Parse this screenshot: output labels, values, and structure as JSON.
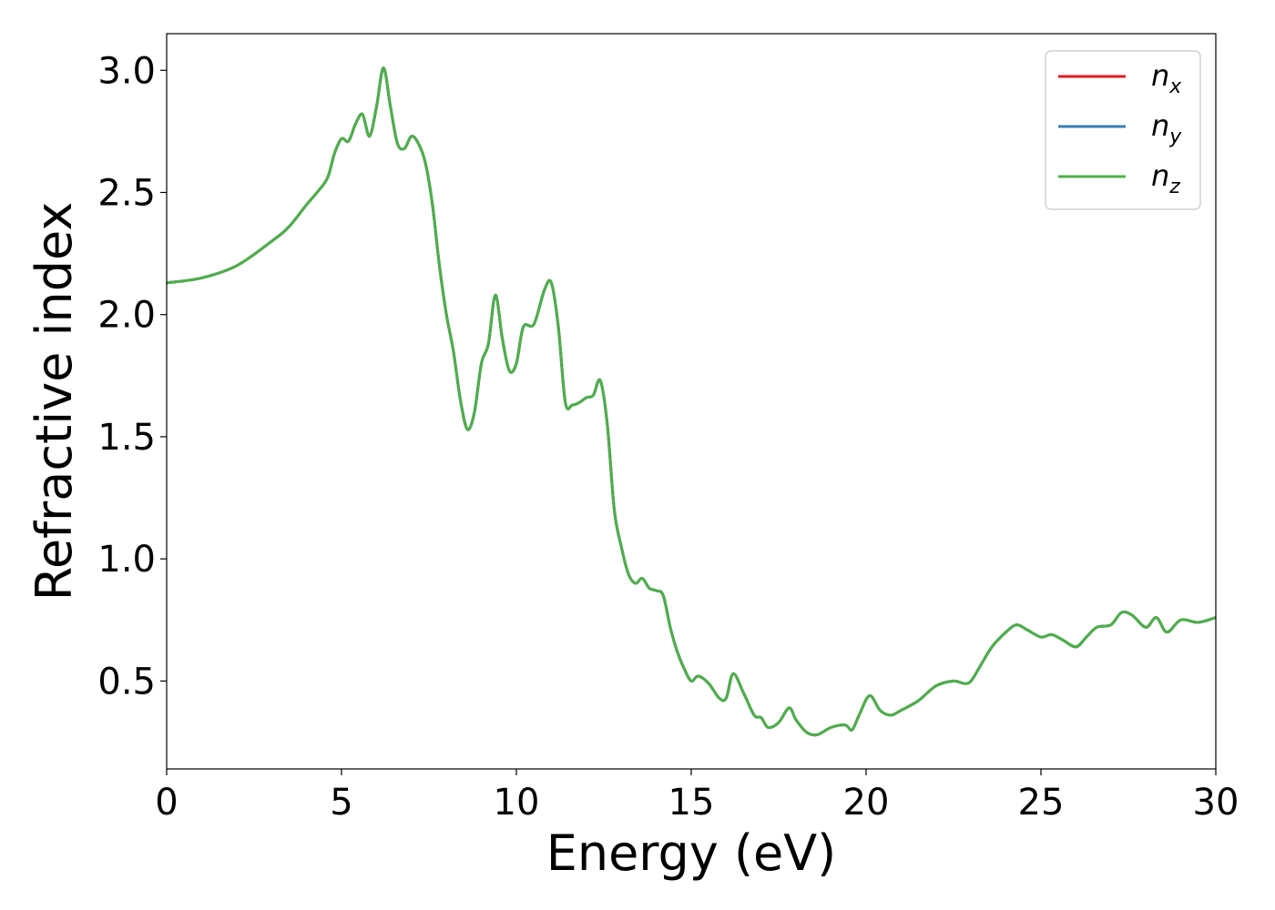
{
  "chart_data": {
    "type": "line",
    "xlabel": "Energy (eV)",
    "ylabel": "Refractive index",
    "xlim": [
      0,
      30
    ],
    "ylim": [
      0.14,
      3.15
    ],
    "xticks": [
      0,
      5,
      10,
      15,
      20,
      25,
      30
    ],
    "xtick_labels": [
      "0",
      "5",
      "10",
      "15",
      "20",
      "25",
      "30"
    ],
    "yticks": [
      0.5,
      1.0,
      1.5,
      2.0,
      2.5,
      3.0
    ],
    "ytick_labels": [
      "0.5",
      "1.0",
      "1.5",
      "2.0",
      "2.5",
      "3.0"
    ],
    "grid": false,
    "legend_position": "top-right",
    "x": [
      0,
      1,
      2,
      3,
      3.5,
      4,
      4.3,
      4.6,
      4.8,
      5.0,
      5.2,
      5.4,
      5.6,
      5.8,
      6.0,
      6.2,
      6.4,
      6.6,
      6.8,
      7.0,
      7.2,
      7.4,
      7.6,
      7.8,
      8.0,
      8.2,
      8.4,
      8.6,
      8.8,
      9.0,
      9.2,
      9.4,
      9.6,
      9.8,
      10.0,
      10.2,
      10.5,
      10.8,
      11.0,
      11.2,
      11.4,
      11.6,
      11.8,
      12.0,
      12.2,
      12.4,
      12.6,
      12.8,
      13.0,
      13.2,
      13.4,
      13.6,
      13.8,
      14.0,
      14.2,
      14.4,
      14.6,
      14.8,
      15.0,
      15.2,
      15.5,
      15.8,
      16.0,
      16.2,
      16.5,
      16.8,
      17.0,
      17.2,
      17.5,
      17.8,
      18.0,
      18.3,
      18.6,
      19.0,
      19.4,
      19.6,
      19.8,
      20.1,
      20.4,
      20.7,
      21.0,
      21.5,
      22.0,
      22.5,
      22.8,
      23.0,
      23.3,
      23.6,
      24.0,
      24.3,
      24.6,
      25.0,
      25.3,
      25.6,
      26.0,
      26.3,
      26.6,
      27.0,
      27.3,
      27.6,
      28.0,
      28.3,
      28.6,
      29.0,
      29.5,
      30.0
    ],
    "series": [
      {
        "name": "n",
        "subscript": "x",
        "color": "#e41a1c",
        "values": [
          2.13,
          2.15,
          2.2,
          2.3,
          2.36,
          2.45,
          2.5,
          2.56,
          2.66,
          2.72,
          2.71,
          2.78,
          2.82,
          2.73,
          2.85,
          3.01,
          2.85,
          2.7,
          2.68,
          2.73,
          2.7,
          2.62,
          2.45,
          2.2,
          2.0,
          1.85,
          1.65,
          1.53,
          1.6,
          1.8,
          1.88,
          2.08,
          1.9,
          1.77,
          1.8,
          1.95,
          1.96,
          2.1,
          2.13,
          1.95,
          1.64,
          1.63,
          1.64,
          1.66,
          1.67,
          1.73,
          1.55,
          1.2,
          1.05,
          0.94,
          0.9,
          0.92,
          0.88,
          0.87,
          0.85,
          0.72,
          0.62,
          0.55,
          0.5,
          0.52,
          0.49,
          0.43,
          0.43,
          0.53,
          0.45,
          0.36,
          0.35,
          0.31,
          0.33,
          0.39,
          0.34,
          0.29,
          0.28,
          0.31,
          0.32,
          0.3,
          0.36,
          0.44,
          0.38,
          0.36,
          0.38,
          0.42,
          0.48,
          0.5,
          0.49,
          0.5,
          0.57,
          0.64,
          0.7,
          0.73,
          0.71,
          0.68,
          0.69,
          0.67,
          0.64,
          0.68,
          0.72,
          0.73,
          0.78,
          0.77,
          0.72,
          0.76,
          0.7,
          0.75,
          0.74,
          0.76
        ]
      },
      {
        "name": "n",
        "subscript": "y",
        "color": "#377eb8",
        "values": [
          2.13,
          2.15,
          2.2,
          2.3,
          2.36,
          2.45,
          2.5,
          2.56,
          2.66,
          2.72,
          2.71,
          2.78,
          2.82,
          2.73,
          2.85,
          3.01,
          2.85,
          2.7,
          2.68,
          2.73,
          2.7,
          2.62,
          2.45,
          2.2,
          2.0,
          1.85,
          1.65,
          1.53,
          1.6,
          1.8,
          1.88,
          2.08,
          1.9,
          1.77,
          1.8,
          1.95,
          1.96,
          2.1,
          2.13,
          1.95,
          1.64,
          1.63,
          1.64,
          1.66,
          1.67,
          1.73,
          1.55,
          1.2,
          1.05,
          0.94,
          0.9,
          0.92,
          0.88,
          0.87,
          0.85,
          0.72,
          0.62,
          0.55,
          0.5,
          0.52,
          0.49,
          0.43,
          0.43,
          0.53,
          0.45,
          0.36,
          0.35,
          0.31,
          0.33,
          0.39,
          0.34,
          0.29,
          0.28,
          0.31,
          0.32,
          0.3,
          0.36,
          0.44,
          0.38,
          0.36,
          0.38,
          0.42,
          0.48,
          0.5,
          0.49,
          0.5,
          0.57,
          0.64,
          0.7,
          0.73,
          0.71,
          0.68,
          0.69,
          0.67,
          0.64,
          0.68,
          0.72,
          0.73,
          0.78,
          0.77,
          0.72,
          0.76,
          0.7,
          0.75,
          0.74,
          0.76
        ]
      },
      {
        "name": "n",
        "subscript": "z",
        "color": "#4daf4a",
        "values": [
          2.13,
          2.15,
          2.2,
          2.3,
          2.36,
          2.45,
          2.5,
          2.56,
          2.66,
          2.72,
          2.71,
          2.78,
          2.82,
          2.73,
          2.85,
          3.01,
          2.85,
          2.7,
          2.68,
          2.73,
          2.7,
          2.62,
          2.45,
          2.2,
          2.0,
          1.85,
          1.65,
          1.53,
          1.6,
          1.8,
          1.88,
          2.08,
          1.9,
          1.77,
          1.8,
          1.95,
          1.96,
          2.1,
          2.13,
          1.95,
          1.64,
          1.63,
          1.64,
          1.66,
          1.67,
          1.73,
          1.55,
          1.2,
          1.05,
          0.94,
          0.9,
          0.92,
          0.88,
          0.87,
          0.85,
          0.72,
          0.62,
          0.55,
          0.5,
          0.52,
          0.49,
          0.43,
          0.43,
          0.53,
          0.45,
          0.36,
          0.35,
          0.31,
          0.33,
          0.39,
          0.34,
          0.29,
          0.28,
          0.31,
          0.32,
          0.3,
          0.36,
          0.44,
          0.38,
          0.36,
          0.38,
          0.42,
          0.48,
          0.5,
          0.49,
          0.5,
          0.57,
          0.64,
          0.7,
          0.73,
          0.71,
          0.68,
          0.69,
          0.67,
          0.64,
          0.68,
          0.72,
          0.73,
          0.78,
          0.77,
          0.72,
          0.76,
          0.7,
          0.75,
          0.74,
          0.76
        ]
      }
    ]
  }
}
